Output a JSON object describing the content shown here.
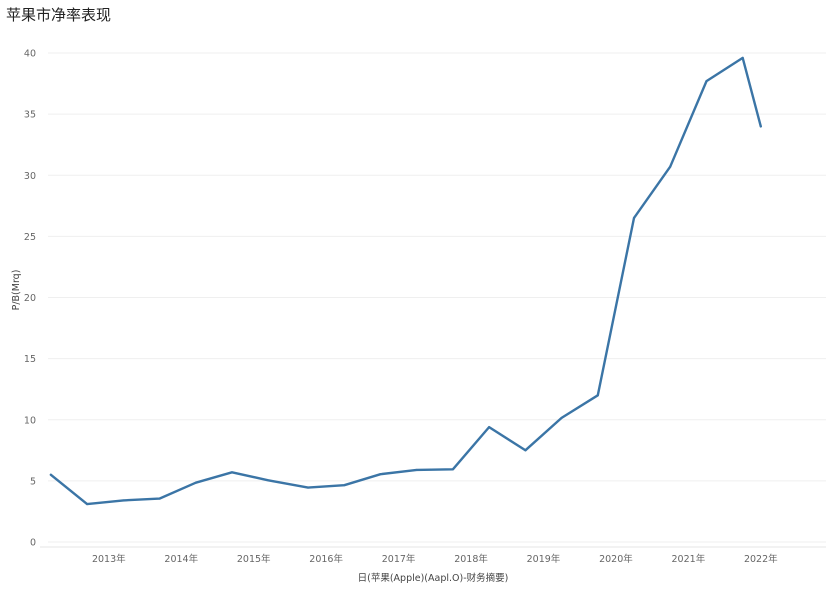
{
  "chart_data": {
    "type": "line",
    "title": "苹果市净率表现",
    "xlabel": "日(苹果(Apple)(Aapl.O)-财务摘要)",
    "ylabel": "P/B(Mrq)",
    "x_ticks": [
      "2013年",
      "2014年",
      "2015年",
      "2016年",
      "2017年",
      "2018年",
      "2019年",
      "2020年",
      "2021年",
      "2022年"
    ],
    "x_range": [
      2012.55,
      2023.4
    ],
    "ylim": [
      0,
      40
    ],
    "y_ticks": [
      0,
      5,
      10,
      15,
      20,
      25,
      30,
      35,
      40
    ],
    "grid": "horizontal",
    "series": [
      {
        "color": "#3b75a6",
        "x": [
          2012.7,
          2013.2,
          2013.7,
          2014.2,
          2014.7,
          2015.2,
          2015.7,
          2016.25,
          2016.75,
          2017.25,
          2017.75,
          2018.25,
          2018.75,
          2019.25,
          2019.75,
          2020.25,
          2020.75,
          2021.25,
          2021.75,
          2022.25,
          2022.5
        ],
        "y": [
          5.5,
          3.1,
          3.4,
          3.55,
          4.85,
          5.7,
          5.05,
          4.45,
          4.65,
          5.55,
          5.9,
          5.95,
          9.4,
          7.5,
          10.15,
          12.0,
          26.5,
          30.7,
          37.7,
          39.6,
          34.0
        ]
      }
    ]
  }
}
